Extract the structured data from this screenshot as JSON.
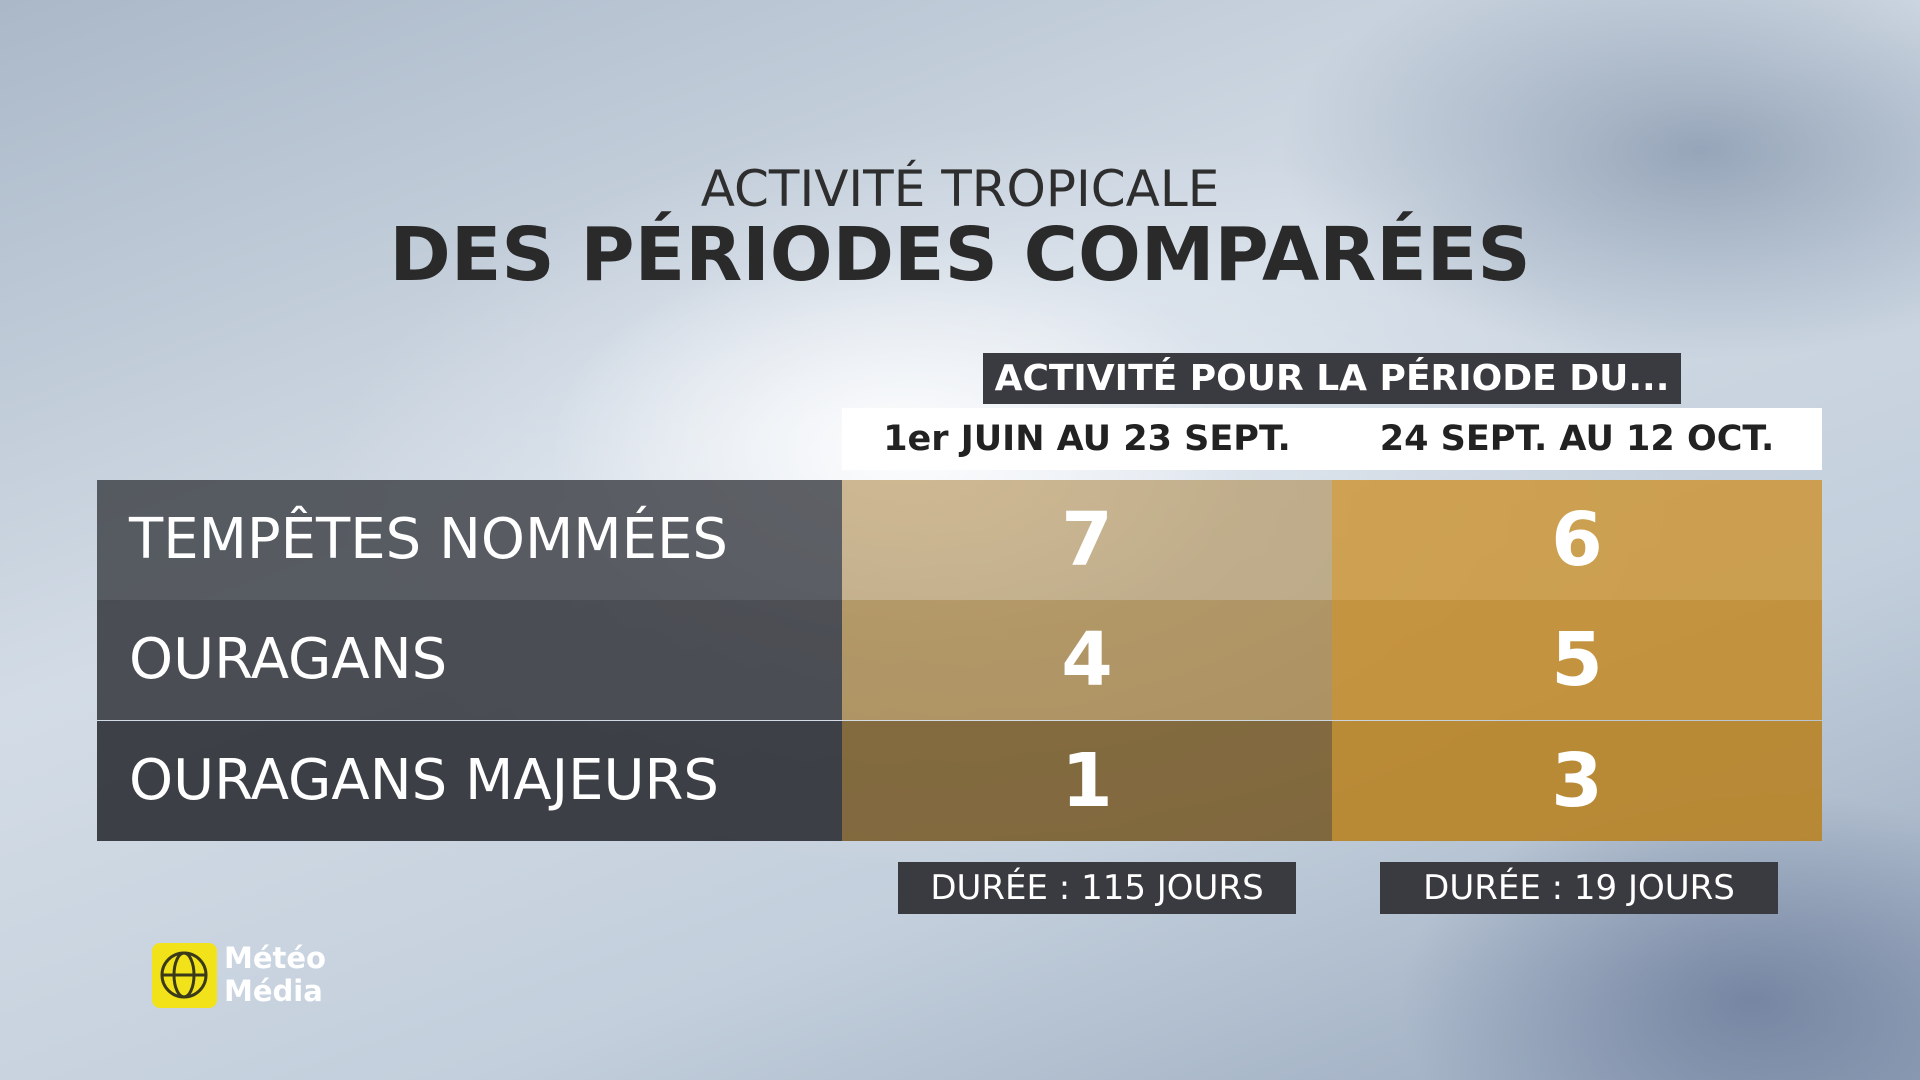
{
  "header": {
    "subtitle": "ACTIVITÉ TROPICALE",
    "title": "DES PÉRIODES COMPARÉES"
  },
  "table": {
    "group_header": "ACTIVITÉ POUR LA PÉRIODE DU...",
    "columns": [
      "1er JUIN AU 23 SEPT.",
      "24 SEPT. AU 12 OCT."
    ],
    "rows": [
      {
        "label": "TEMPÊTES NOMMÉES",
        "values": [
          7,
          6
        ]
      },
      {
        "label": "OURAGANS",
        "values": [
          4,
          5
        ]
      },
      {
        "label": "OURAGANS MAJEURS",
        "values": [
          1,
          3
        ]
      }
    ],
    "durations": [
      "DURÉE : 115 JOURS",
      "DURÉE : 19 JOURS"
    ]
  },
  "logo": [
    "Météo",
    "Média"
  ]
}
